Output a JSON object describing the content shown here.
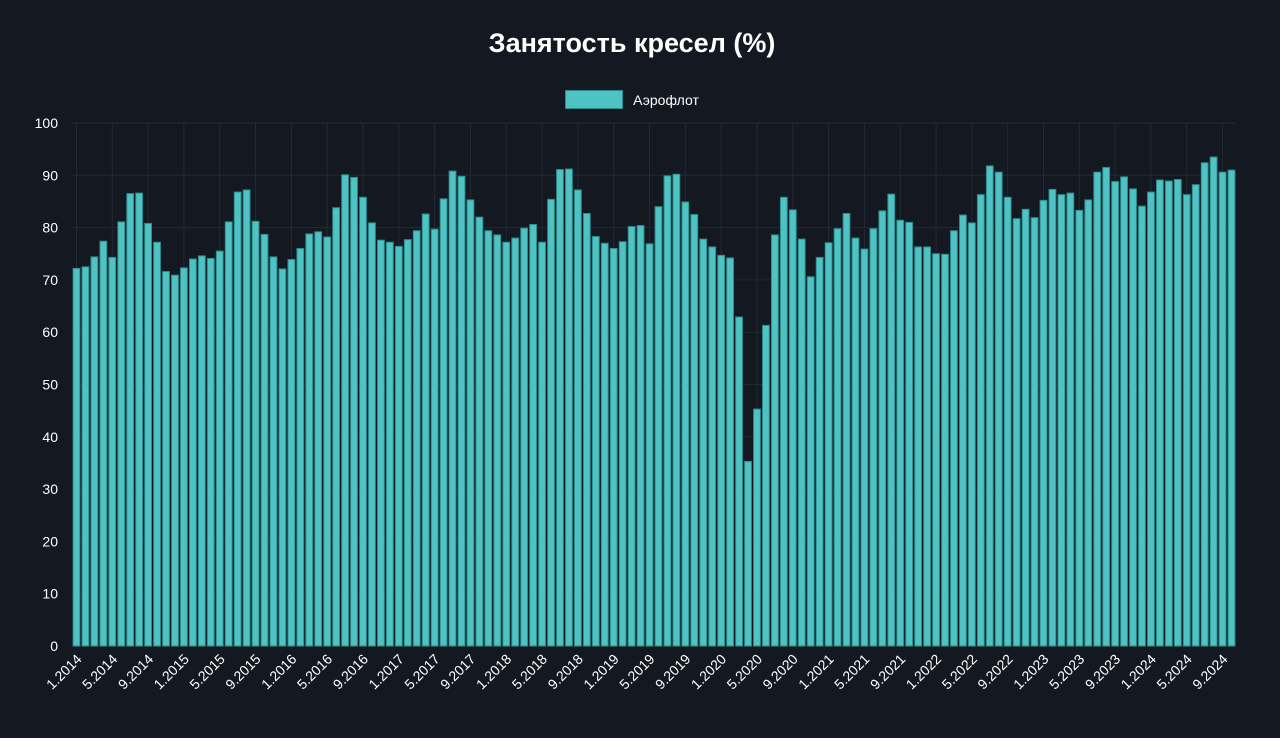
{
  "chart_data": {
    "type": "bar",
    "title": "Занятость кресел (%)",
    "xlabel": "",
    "ylabel": "",
    "ylim": [
      0,
      100
    ],
    "yticks": [
      0,
      10,
      20,
      30,
      40,
      50,
      60,
      70,
      80,
      90,
      100
    ],
    "grid": true,
    "legend_position": "top-center",
    "colors": {
      "bar_fill": "#4fc3c3",
      "bar_border": "#2c8c8c",
      "grid": "#232a35",
      "background": "#131821"
    },
    "series": [
      {
        "name": "Аэрофлот",
        "values": [
          72.2,
          72.5,
          74.4,
          77.4,
          74.3,
          81.1,
          86.5,
          86.6,
          80.8,
          77.2,
          71.6,
          70.9,
          72.3,
          74.0,
          74.6,
          74.1,
          75.5,
          81.1,
          86.8,
          87.2,
          81.2,
          78.7,
          74.4,
          72.1,
          73.9,
          76.0,
          78.8,
          79.2,
          78.2,
          83.8,
          90.1,
          89.6,
          85.8,
          80.9,
          77.6,
          77.2,
          76.4,
          77.7,
          79.4,
          82.6,
          79.7,
          85.5,
          90.8,
          89.8,
          85.3,
          82.0,
          79.4,
          78.6,
          77.2,
          78.0,
          79.9,
          80.6,
          77.2,
          85.4,
          91.1,
          91.2,
          87.2,
          82.7,
          78.3,
          77.0,
          76.0,
          77.3,
          80.2,
          80.4,
          76.9,
          84.0,
          89.9,
          90.2,
          84.9,
          82.5,
          77.8,
          76.3,
          74.7,
          74.2,
          62.9,
          35.3,
          45.3,
          61.3,
          78.6,
          85.8,
          83.4,
          77.8,
          70.6,
          74.3,
          77.1,
          79.8,
          82.7,
          78.0,
          75.9,
          79.8,
          83.2,
          86.4,
          81.4,
          81.0,
          76.3,
          76.3,
          75.0,
          74.9,
          79.4,
          82.4,
          80.9,
          86.3,
          91.8,
          90.6,
          85.8,
          81.7,
          83.5,
          81.9,
          85.2,
          87.3,
          86.3,
          86.6,
          83.3,
          85.3,
          90.6,
          91.5,
          88.8,
          89.7,
          87.4,
          84.1,
          86.8,
          89.1,
          88.9,
          89.2,
          86.3,
          88.2,
          92.4,
          93.5,
          90.6,
          91.0
        ]
      }
    ],
    "tick_labels": [
      "1.2014",
      "5.2014",
      "9.2014",
      "1.2015",
      "5.2015",
      "9.2015",
      "1.2016",
      "5.2016",
      "9.2016",
      "1.2017",
      "5.2017",
      "9.2017",
      "1.2018",
      "5.2018",
      "9.2018",
      "1.2019",
      "5.2019",
      "9.2019",
      "1.2020",
      "5.2020",
      "9.2020",
      "1.2021",
      "5.2021",
      "9.2021",
      "1.2022",
      "5.2022",
      "9.2022",
      "1.2023",
      "5.2023",
      "9.2023",
      "1.2024",
      "5.2024",
      "9.2024"
    ]
  }
}
